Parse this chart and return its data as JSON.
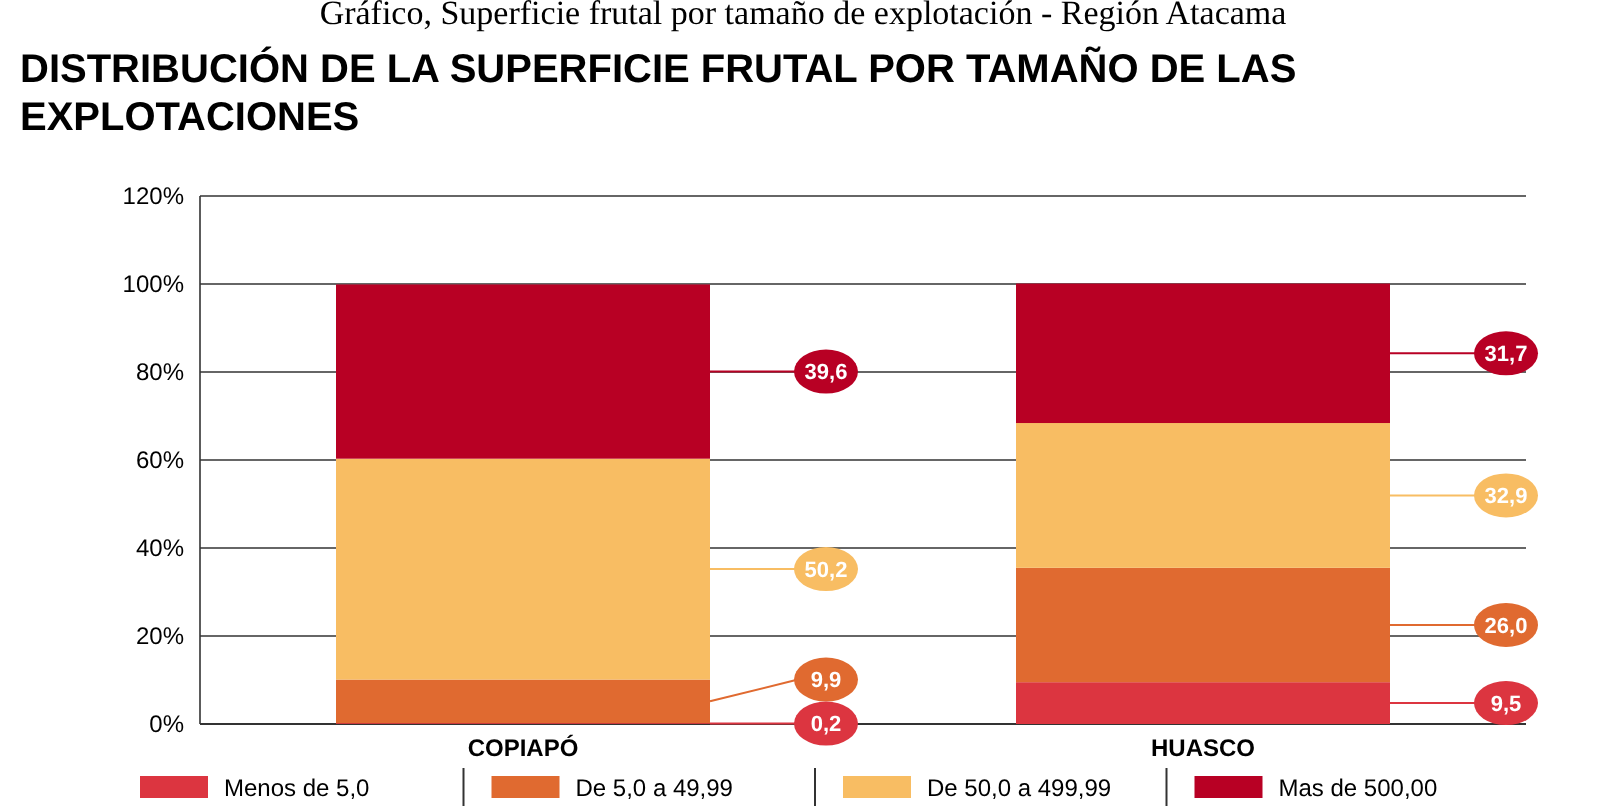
{
  "chart_data": {
    "type": "bar",
    "title": "Gráfico, Superficie frutal por tamaño de explotación - Región Atacama",
    "subtitle": "DISTRIBUCIÓN DE LA SUPERFICIE FRUTAL POR TAMAÑO DE LAS EXPLOTACIONES",
    "categories": [
      "COPIAPÓ",
      "HUASCO"
    ],
    "stacked": true,
    "series": [
      {
        "name": "Menos de 5,0",
        "color": "#dc3540",
        "values": [
          0.2,
          9.5
        ],
        "value_labels": [
          "0,2",
          "9,5"
        ]
      },
      {
        "name": "De 5,0 a 49,99",
        "color": "#e06a30",
        "values": [
          9.9,
          26.0
        ],
        "value_labels": [
          "9,9",
          "26,0"
        ]
      },
      {
        "name": "De 50,0 a 499,99",
        "color": "#f8bd63",
        "values": [
          50.2,
          32.9
        ],
        "value_labels": [
          "50,2",
          "32,9"
        ]
      },
      {
        "name": "Mas de 500,00",
        "color": "#b80024",
        "values": [
          39.6,
          31.7
        ],
        "value_labels": [
          "39,6",
          "31,7"
        ]
      }
    ],
    "ylim": [
      0,
      120
    ],
    "yticks": [
      {
        "value": 0,
        "label": "0%"
      },
      {
        "value": 20,
        "label": "20%"
      },
      {
        "value": 40,
        "label": "40%"
      },
      {
        "value": 60,
        "label": "60%"
      },
      {
        "value": 80,
        "label": "80%"
      },
      {
        "value": 100,
        "label": "100%"
      },
      {
        "value": 120,
        "label": "120%"
      }
    ],
    "grid": "y",
    "legend": "bottom"
  }
}
